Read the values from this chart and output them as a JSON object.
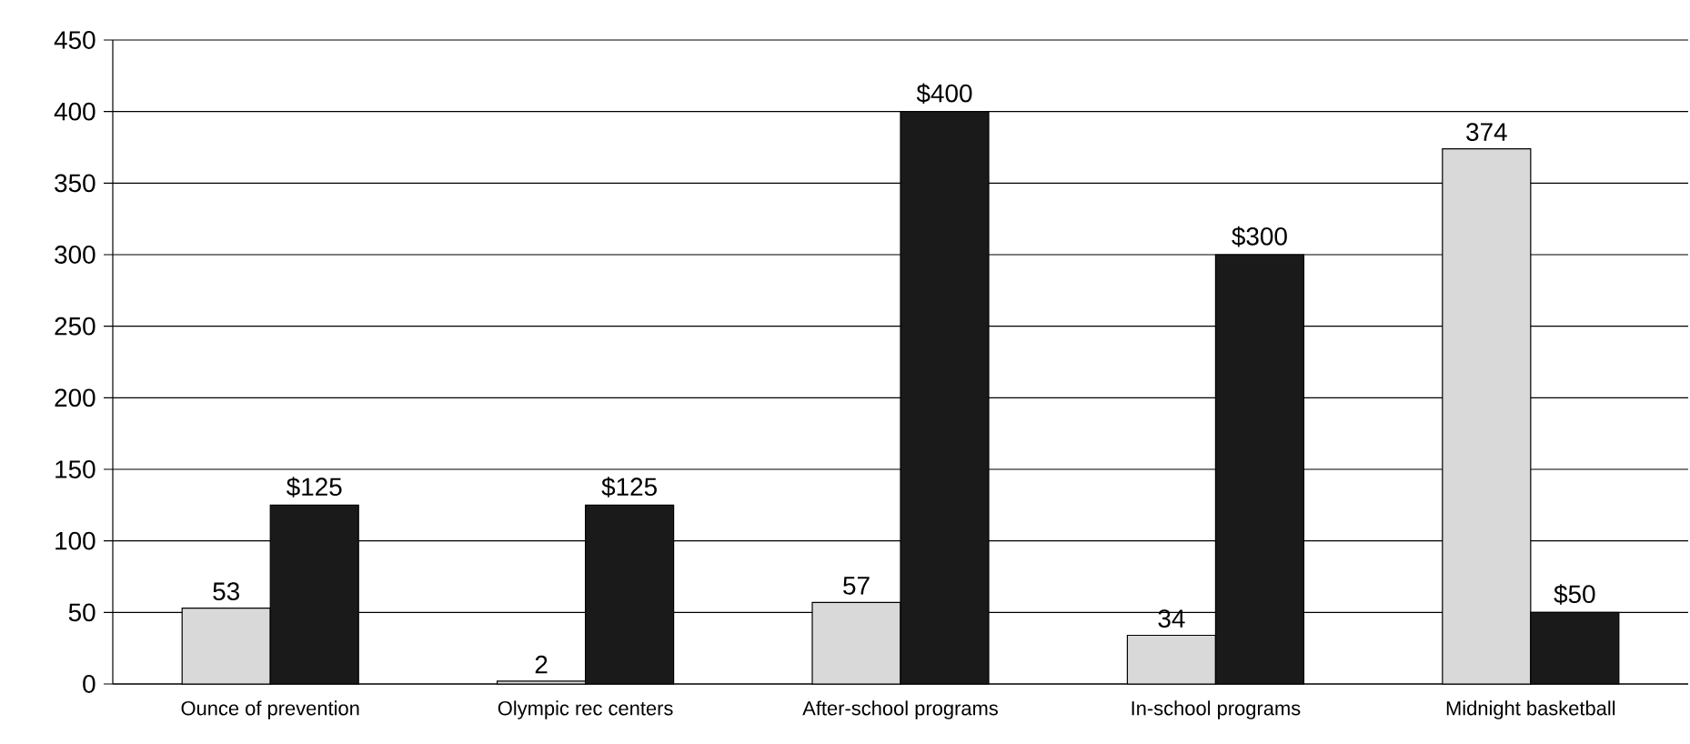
{
  "chart_data": {
    "type": "bar",
    "categories": [
      "Ounce of prevention",
      "Olympic rec centers",
      "After-school programs",
      "In-school programs",
      "Midnight basketball"
    ],
    "series": [
      {
        "color": "#d9d9d9",
        "values": [
          53,
          2,
          57,
          34,
          374
        ],
        "value_labels": [
          "53",
          "2",
          "57",
          "34",
          "374"
        ]
      },
      {
        "color": "#1a1a1a",
        "values": [
          125,
          125,
          400,
          300,
          50
        ],
        "value_labels": [
          "$125",
          "$125",
          "$400",
          "$300",
          "$50"
        ]
      }
    ],
    "ylim": [
      0,
      450
    ],
    "yticks": [
      0,
      50,
      100,
      150,
      200,
      250,
      300,
      350,
      400,
      450
    ],
    "grid": "y"
  }
}
